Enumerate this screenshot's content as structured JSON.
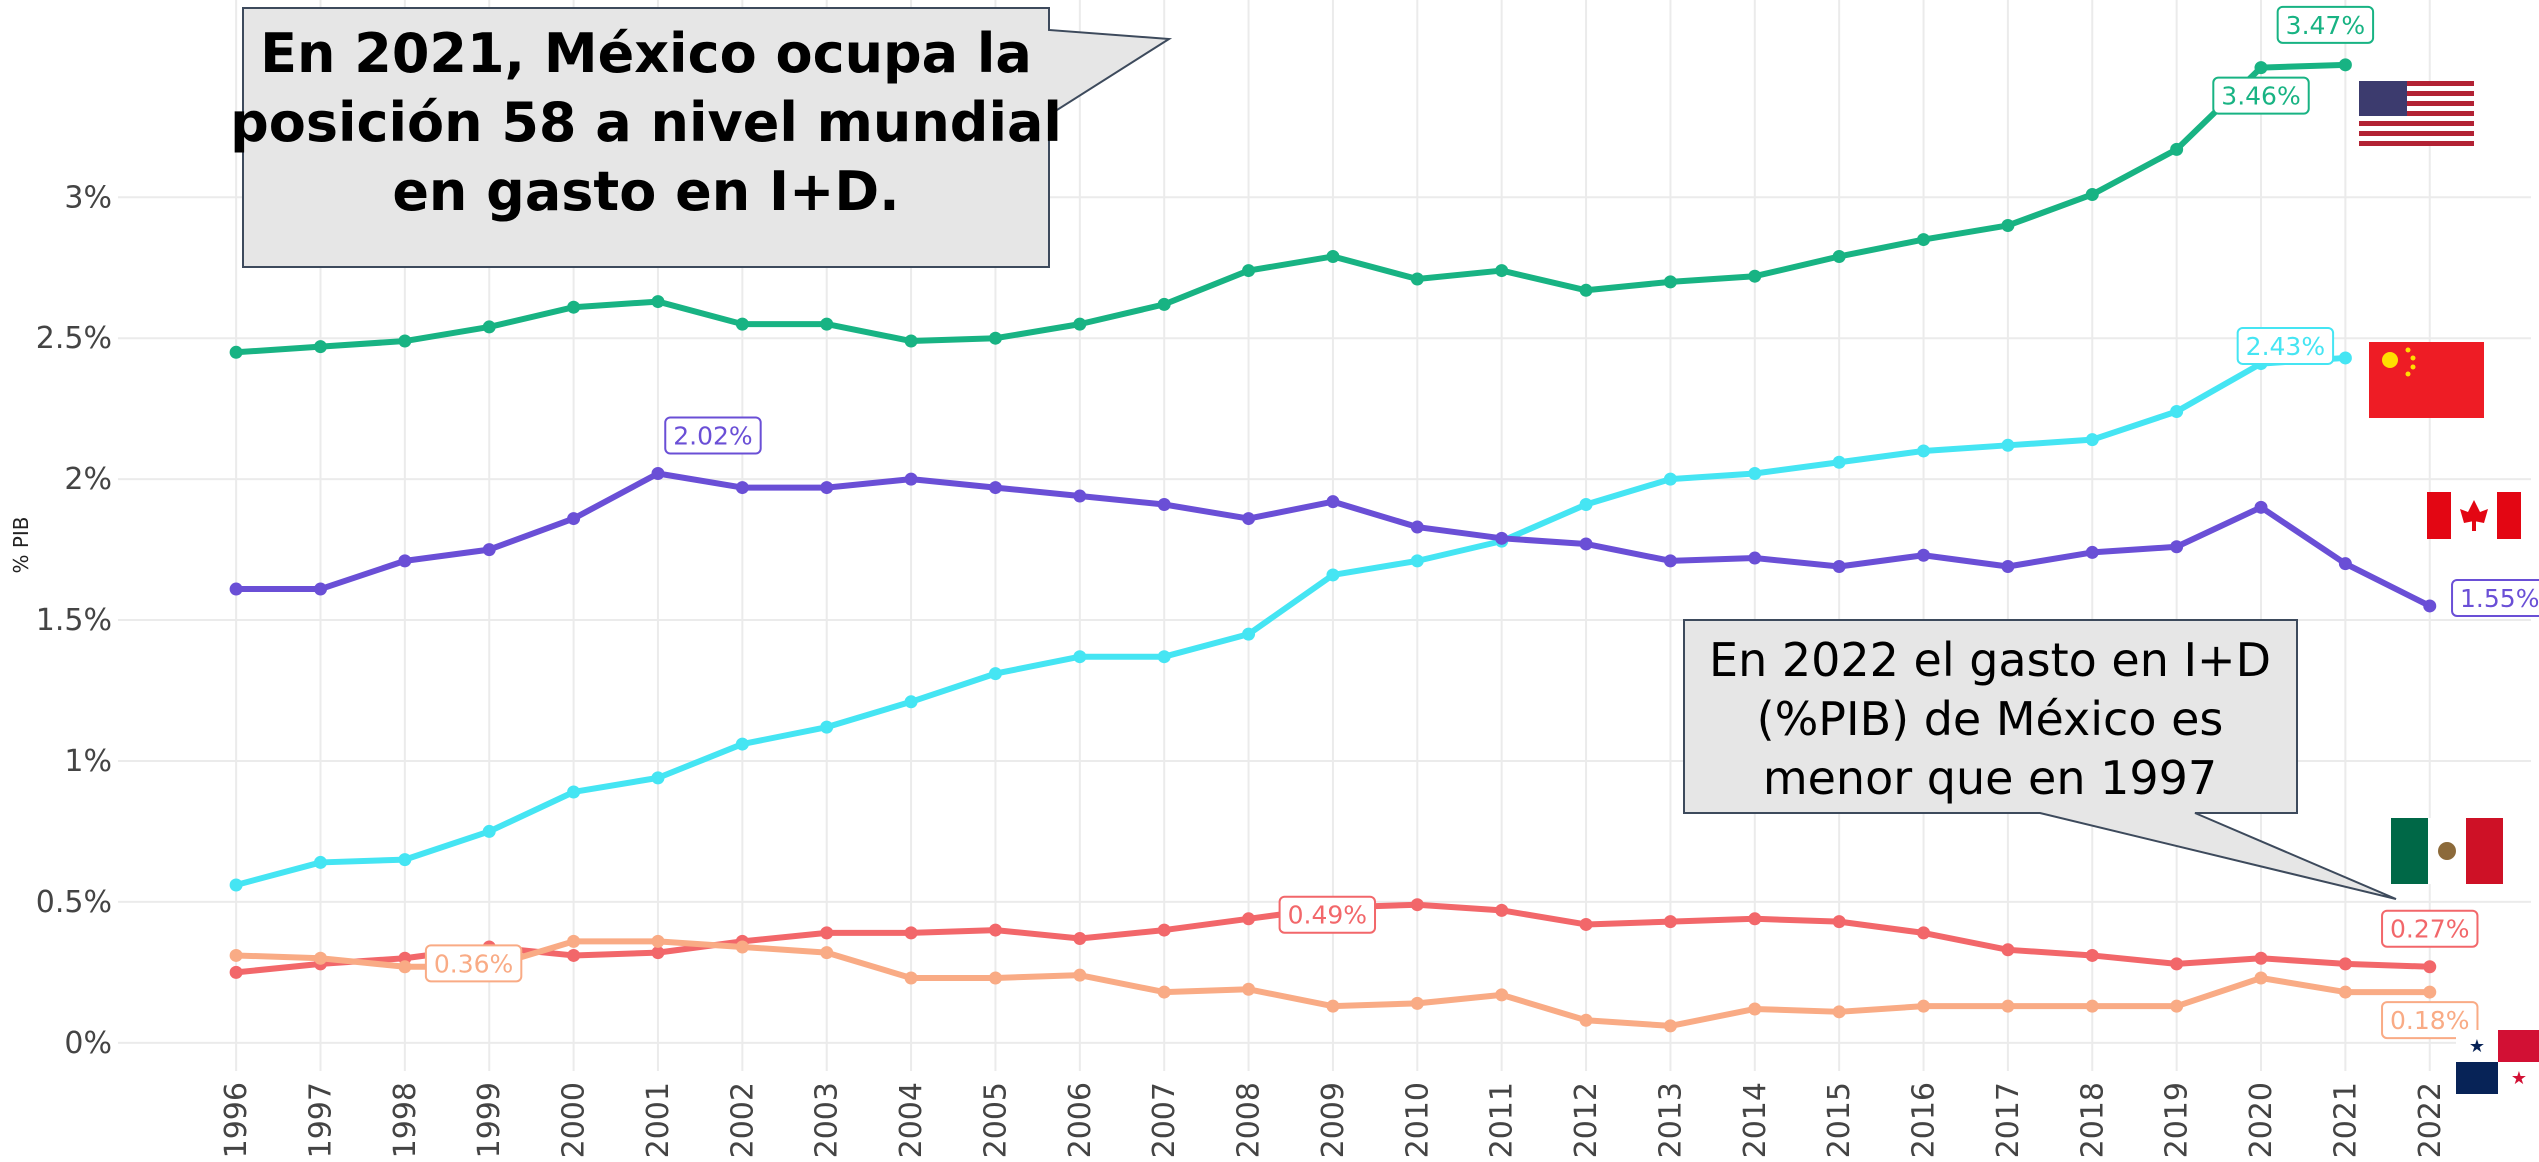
{
  "chart_data": {
    "type": "line",
    "y_label": "% PIB",
    "x": [
      1996,
      1997,
      1998,
      1999,
      2000,
      2001,
      2002,
      2003,
      2004,
      2005,
      2006,
      2007,
      2008,
      2009,
      2010,
      2011,
      2012,
      2013,
      2014,
      2015,
      2016,
      2017,
      2018,
      2019,
      2020,
      2021,
      2022
    ],
    "xticks": [
      1996,
      1997,
      1998,
      1999,
      2000,
      2001,
      2002,
      2003,
      2004,
      2005,
      2006,
      2007,
      2008,
      2009,
      2010,
      2011,
      2012,
      2013,
      2014,
      2015,
      2016,
      2017,
      2018,
      2019,
      2020,
      2021,
      2022
    ],
    "xlim": [
      1994.6,
      2023.2
    ],
    "ylim": [
      -0.1,
      3.7
    ],
    "yticks": [
      {
        "value": 0,
        "label": "0%"
      },
      {
        "value": 0.5,
        "label": "0.5%"
      },
      {
        "value": 1,
        "label": "1%"
      },
      {
        "value": 1.5,
        "label": "1.5%"
      },
      {
        "value": 2,
        "label": "2%"
      },
      {
        "value": 2.5,
        "label": "2.5%"
      },
      {
        "value": 3,
        "label": "3%"
      }
    ],
    "grid": true,
    "series": [
      {
        "color": "#18b383",
        "values": [
          2.45,
          2.47,
          2.49,
          2.54,
          2.61,
          2.63,
          2.55,
          2.55,
          2.49,
          2.5,
          2.55,
          2.62,
          2.74,
          2.79,
          2.71,
          2.74,
          2.67,
          2.7,
          2.72,
          2.79,
          2.85,
          2.9,
          3.01,
          3.17,
          3.46,
          3.47,
          null
        ],
        "value_labels": [
          null,
          null,
          null,
          null,
          null,
          null,
          null,
          null,
          null,
          null,
          null,
          null,
          null,
          null,
          null,
          null,
          null,
          null,
          null,
          null,
          null,
          null,
          null,
          null,
          "3.46%",
          "3.47%",
          null
        ]
      },
      {
        "color": "#45e5f3",
        "values": [
          0.56,
          0.64,
          0.65,
          0.75,
          0.89,
          0.94,
          1.06,
          1.12,
          1.21,
          1.31,
          1.37,
          1.37,
          1.45,
          1.66,
          1.71,
          1.78,
          1.91,
          2.0,
          2.02,
          2.06,
          2.1,
          2.12,
          2.14,
          2.24,
          2.41,
          2.43,
          null
        ],
        "value_labels": [
          null,
          null,
          null,
          null,
          null,
          null,
          null,
          null,
          null,
          null,
          null,
          null,
          null,
          null,
          null,
          null,
          null,
          null,
          null,
          null,
          null,
          null,
          null,
          null,
          null,
          "2.43%",
          null
        ]
      },
      {
        "color": "#6a4fd6",
        "values": [
          1.61,
          1.61,
          1.71,
          1.75,
          1.86,
          2.02,
          1.97,
          1.97,
          2.0,
          1.97,
          1.94,
          1.91,
          1.86,
          1.92,
          1.83,
          1.79,
          1.77,
          1.71,
          1.72,
          1.69,
          1.73,
          1.69,
          1.74,
          1.76,
          1.9,
          1.7,
          1.55
        ],
        "value_labels": [
          null,
          null,
          null,
          null,
          null,
          "2.02%",
          null,
          null,
          null,
          null,
          null,
          null,
          null,
          null,
          null,
          null,
          null,
          null,
          null,
          null,
          null,
          null,
          null,
          null,
          null,
          null,
          "1.55%"
        ]
      },
      {
        "color": "#f2676a",
        "values": [
          0.25,
          0.28,
          0.3,
          0.34,
          0.31,
          0.32,
          0.36,
          0.39,
          0.39,
          0.4,
          0.37,
          0.4,
          0.44,
          0.48,
          0.49,
          0.47,
          0.42,
          0.43,
          0.44,
          0.43,
          0.39,
          0.33,
          0.31,
          0.28,
          0.3,
          0.28,
          0.27
        ],
        "value_labels": [
          null,
          null,
          null,
          null,
          null,
          null,
          null,
          null,
          null,
          null,
          null,
          null,
          null,
          null,
          "0.49%",
          null,
          null,
          null,
          null,
          null,
          null,
          null,
          null,
          null,
          null,
          null,
          "0.27%"
        ]
      },
      {
        "color": "#f9ab85",
        "values": [
          0.31,
          0.3,
          0.27,
          0.27,
          0.36,
          0.36,
          0.34,
          0.32,
          0.23,
          0.23,
          0.24,
          0.18,
          0.19,
          0.13,
          0.14,
          0.17,
          0.08,
          0.06,
          0.12,
          0.11,
          0.13,
          0.13,
          0.13,
          0.13,
          0.23,
          0.18,
          0.18
        ],
        "value_labels": [
          null,
          null,
          null,
          null,
          "0.36%",
          null,
          null,
          null,
          null,
          null,
          null,
          null,
          null,
          null,
          null,
          null,
          null,
          null,
          null,
          null,
          null,
          null,
          null,
          null,
          null,
          null,
          "0.18%"
        ]
      }
    ],
    "annotations": [
      [
        "En 2021, México ocupa la",
        "posición 58 a nivel mundial",
        "en gasto en I+D."
      ],
      [
        "En 2022 el gasto en I+D",
        "(%PIB) de México es",
        "menor que en 1997"
      ]
    ]
  }
}
